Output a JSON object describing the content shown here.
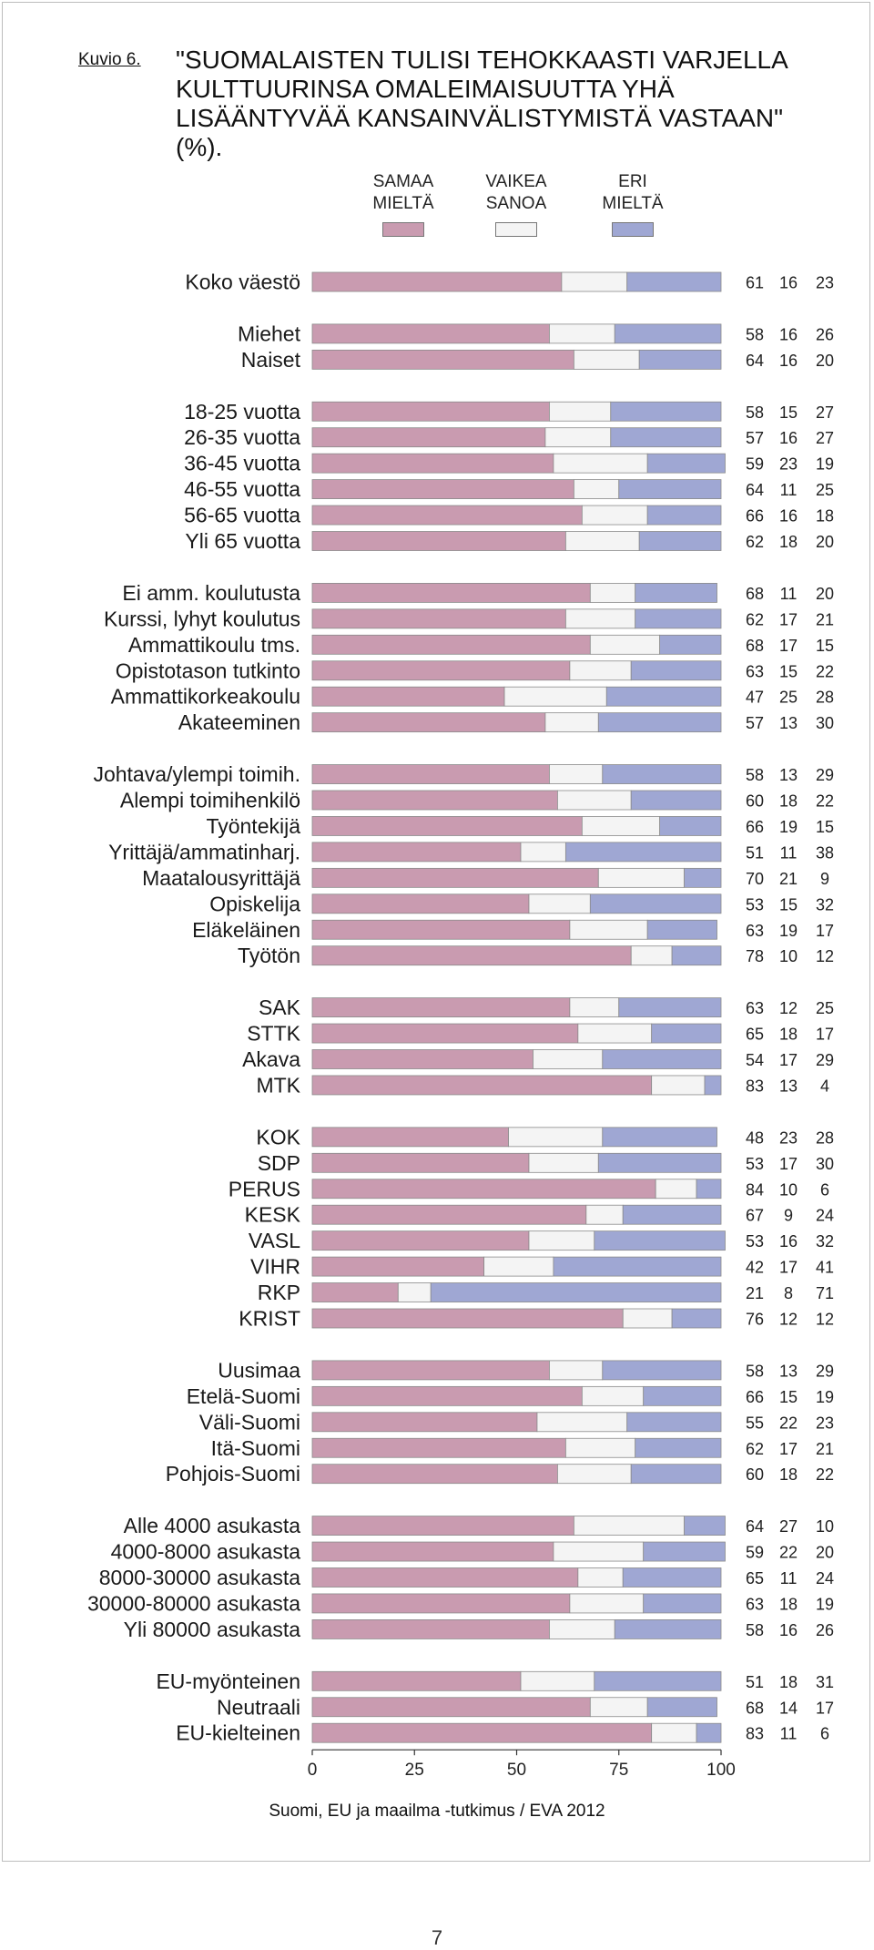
{
  "figure": {
    "label": "Kuvio 6.",
    "title": "\"SUOMALAISTEN TULISI TEHOKKAASTI VARJELLA KULTTUURINSA OMALEIMAISUUTTA YHÄ LISÄÄNTYVÄÄ KANSAINVÄLISTYMISTÄ VASTAAN\" (%).",
    "source": "Suomi, EU ja maailma -tutkimus / EVA 2012",
    "page_number": "7"
  },
  "legend": [
    {
      "line1": "SAMAA",
      "line2": "MIELTÄ",
      "color": "#c99bb0"
    },
    {
      "line1": "VAIKEA",
      "line2": "SANOA",
      "color": "#f4f4f4"
    },
    {
      "line1": "ERI",
      "line2": "MIELTÄ",
      "color": "#9fa7d3"
    }
  ],
  "chart_data": {
    "type": "bar",
    "stacked": true,
    "orientation": "horizontal",
    "xlim": [
      0,
      100
    ],
    "xticks": [
      0,
      25,
      50,
      75,
      100
    ],
    "series": [
      {
        "name": "SAMAA MIELTÄ",
        "color": "#c99bb0"
      },
      {
        "name": "VAIKEA SANOA",
        "color": "#f4f4f4"
      },
      {
        "name": "ERI MIELTÄ",
        "color": "#9fa7d3"
      }
    ],
    "groups": [
      [
        {
          "label": "Koko väestö",
          "values": [
            61,
            16,
            23
          ]
        }
      ],
      [
        {
          "label": "Miehet",
          "values": [
            58,
            16,
            26
          ]
        },
        {
          "label": "Naiset",
          "values": [
            64,
            16,
            20
          ]
        }
      ],
      [
        {
          "label": "18-25 vuotta",
          "values": [
            58,
            15,
            27
          ]
        },
        {
          "label": "26-35 vuotta",
          "values": [
            57,
            16,
            27
          ]
        },
        {
          "label": "36-45 vuotta",
          "values": [
            59,
            23,
            19
          ]
        },
        {
          "label": "46-55 vuotta",
          "values": [
            64,
            11,
            25
          ]
        },
        {
          "label": "56-65 vuotta",
          "values": [
            66,
            16,
            18
          ]
        },
        {
          "label": "Yli 65 vuotta",
          "values": [
            62,
            18,
            20
          ]
        }
      ],
      [
        {
          "label": "Ei amm. koulutusta",
          "values": [
            68,
            11,
            20
          ]
        },
        {
          "label": "Kurssi, lyhyt koulutus",
          "values": [
            62,
            17,
            21
          ]
        },
        {
          "label": "Ammattikoulu tms.",
          "values": [
            68,
            17,
            15
          ]
        },
        {
          "label": "Opistotason tutkinto",
          "values": [
            63,
            15,
            22
          ]
        },
        {
          "label": "Ammattikorkeakoulu",
          "values": [
            47,
            25,
            28
          ]
        },
        {
          "label": "Akateeminen",
          "values": [
            57,
            13,
            30
          ]
        }
      ],
      [
        {
          "label": "Johtava/ylempi toimih.",
          "values": [
            58,
            13,
            29
          ]
        },
        {
          "label": "Alempi toimihenkilö",
          "values": [
            60,
            18,
            22
          ]
        },
        {
          "label": "Työntekijä",
          "values": [
            66,
            19,
            15
          ]
        },
        {
          "label": "Yrittäjä/ammatinharj.",
          "values": [
            51,
            11,
            38
          ]
        },
        {
          "label": "Maatalousyrittäjä",
          "values": [
            70,
            21,
            9
          ]
        },
        {
          "label": "Opiskelija",
          "values": [
            53,
            15,
            32
          ]
        },
        {
          "label": "Eläkeläinen",
          "values": [
            63,
            19,
            17
          ]
        },
        {
          "label": "Työtön",
          "values": [
            78,
            10,
            12
          ]
        }
      ],
      [
        {
          "label": "SAK",
          "values": [
            63,
            12,
            25
          ]
        },
        {
          "label": "STTK",
          "values": [
            65,
            18,
            17
          ]
        },
        {
          "label": "Akava",
          "values": [
            54,
            17,
            29
          ]
        },
        {
          "label": "MTK",
          "values": [
            83,
            13,
            4
          ]
        }
      ],
      [
        {
          "label": "KOK",
          "values": [
            48,
            23,
            28
          ]
        },
        {
          "label": "SDP",
          "values": [
            53,
            17,
            30
          ]
        },
        {
          "label": "PERUS",
          "values": [
            84,
            10,
            6
          ]
        },
        {
          "label": "KESK",
          "values": [
            67,
            9,
            24
          ]
        },
        {
          "label": "VASL",
          "values": [
            53,
            16,
            32
          ]
        },
        {
          "label": "VIHR",
          "values": [
            42,
            17,
            41
          ]
        },
        {
          "label": "RKP",
          "values": [
            21,
            8,
            71
          ]
        },
        {
          "label": "KRIST",
          "values": [
            76,
            12,
            12
          ]
        }
      ],
      [
        {
          "label": "Uusimaa",
          "values": [
            58,
            13,
            29
          ]
        },
        {
          "label": "Etelä-Suomi",
          "values": [
            66,
            15,
            19
          ]
        },
        {
          "label": "Väli-Suomi",
          "values": [
            55,
            22,
            23
          ]
        },
        {
          "label": "Itä-Suomi",
          "values": [
            62,
            17,
            21
          ]
        },
        {
          "label": "Pohjois-Suomi",
          "values": [
            60,
            18,
            22
          ]
        }
      ],
      [
        {
          "label": "Alle 4000 asukasta",
          "values": [
            64,
            27,
            10
          ]
        },
        {
          "label": "4000-8000 asukasta",
          "values": [
            59,
            22,
            20
          ]
        },
        {
          "label": "8000-30000 asukasta",
          "values": [
            65,
            11,
            24
          ]
        },
        {
          "label": "30000-80000 asukasta",
          "values": [
            63,
            18,
            19
          ]
        },
        {
          "label": "Yli 80000 asukasta",
          "values": [
            58,
            16,
            26
          ]
        }
      ],
      [
        {
          "label": "EU-myönteinen",
          "values": [
            51,
            18,
            31
          ]
        },
        {
          "label": "Neutraali",
          "values": [
            68,
            14,
            17
          ]
        },
        {
          "label": "EU-kielteinen",
          "values": [
            83,
            11,
            6
          ]
        }
      ]
    ]
  }
}
